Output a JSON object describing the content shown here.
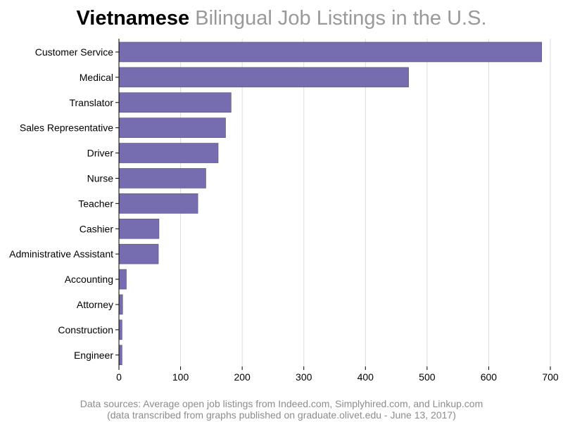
{
  "title": {
    "bold": "Vietnamese",
    "light": " Bilingual Job Listings in the U.S."
  },
  "chart_data": {
    "type": "bar",
    "orientation": "horizontal",
    "categories": [
      "Customer Service",
      "Medical",
      "Translator",
      "Sales Representative",
      "Driver",
      "Nurse",
      "Teacher",
      "Cashier",
      "Administrative Assistant",
      "Accounting",
      "Attorney",
      "Construction",
      "Engineer"
    ],
    "values": [
      686,
      470,
      182,
      173,
      161,
      141,
      128,
      65,
      64,
      12,
      6,
      5,
      5
    ],
    "xlim": [
      0,
      700
    ],
    "xticks": [
      0,
      100,
      200,
      300,
      400,
      500,
      600,
      700
    ],
    "grid": true,
    "bar_color": "#766db0",
    "xlabel": "",
    "ylabel": ""
  },
  "footer": {
    "line1": "Data sources: Average open job listings from Indeed.com, Simplyhired.com, and Linkup.com",
    "line2": "(data transcribed from graphs published on graduate.olivet.edu - June 13, 2017)"
  }
}
